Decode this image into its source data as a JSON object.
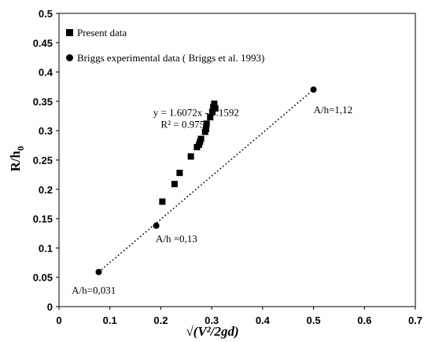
{
  "chart_data": {
    "type": "scatter",
    "xlabel": "√(V²/2gd)",
    "ylabel": "R/h",
    "ylabel_sub": "0",
    "xlim": [
      0,
      0.7
    ],
    "ylim": [
      0,
      0.5
    ],
    "xticks": [
      "0",
      "0.1",
      "0.2",
      "0.3",
      "0.4",
      "0.5",
      "0.6",
      "0.7"
    ],
    "yticks": [
      "0",
      "0.05",
      "0.1",
      "0.15",
      "0.2",
      "0.25",
      "0.3",
      "0.35",
      "0.4",
      "0.45",
      "0.5"
    ],
    "legend_position": "top-left",
    "series": [
      {
        "name": "Present data",
        "marker": "square",
        "color": "#000000",
        "points": [
          [
            0.203,
            0.179
          ],
          [
            0.227,
            0.209
          ],
          [
            0.237,
            0.228
          ],
          [
            0.259,
            0.256
          ],
          [
            0.271,
            0.272
          ],
          [
            0.275,
            0.276
          ],
          [
            0.277,
            0.281
          ],
          [
            0.279,
            0.286
          ],
          [
            0.287,
            0.298
          ],
          [
            0.289,
            0.303
          ],
          [
            0.29,
            0.312
          ],
          [
            0.297,
            0.323
          ],
          [
            0.301,
            0.332
          ],
          [
            0.303,
            0.34
          ],
          [
            0.305,
            0.346
          ],
          [
            0.307,
            0.338
          ]
        ]
      },
      {
        "name": "Briggs experimental data ( Briggs et al. 1993)",
        "marker": "circle",
        "color": "#000000",
        "trendline": "dotted",
        "points": [
          [
            0.078,
            0.059
          ],
          [
            0.191,
            0.138
          ],
          [
            0.5,
            0.37
          ]
        ]
      }
    ],
    "annotations": [
      {
        "text": "y = 1.6072x - 0.1592",
        "x": 0.185,
        "y": 0.325
      },
      {
        "text": "R² = 0.9751",
        "x": 0.2,
        "y": 0.305
      },
      {
        "text": "A/h=1,12",
        "x": 0.5,
        "y": 0.33
      },
      {
        "text": "A/h =0,13",
        "x": 0.19,
        "y": 0.11
      },
      {
        "text": "A/h=0,031",
        "x": 0.025,
        "y": 0.022
      }
    ]
  }
}
